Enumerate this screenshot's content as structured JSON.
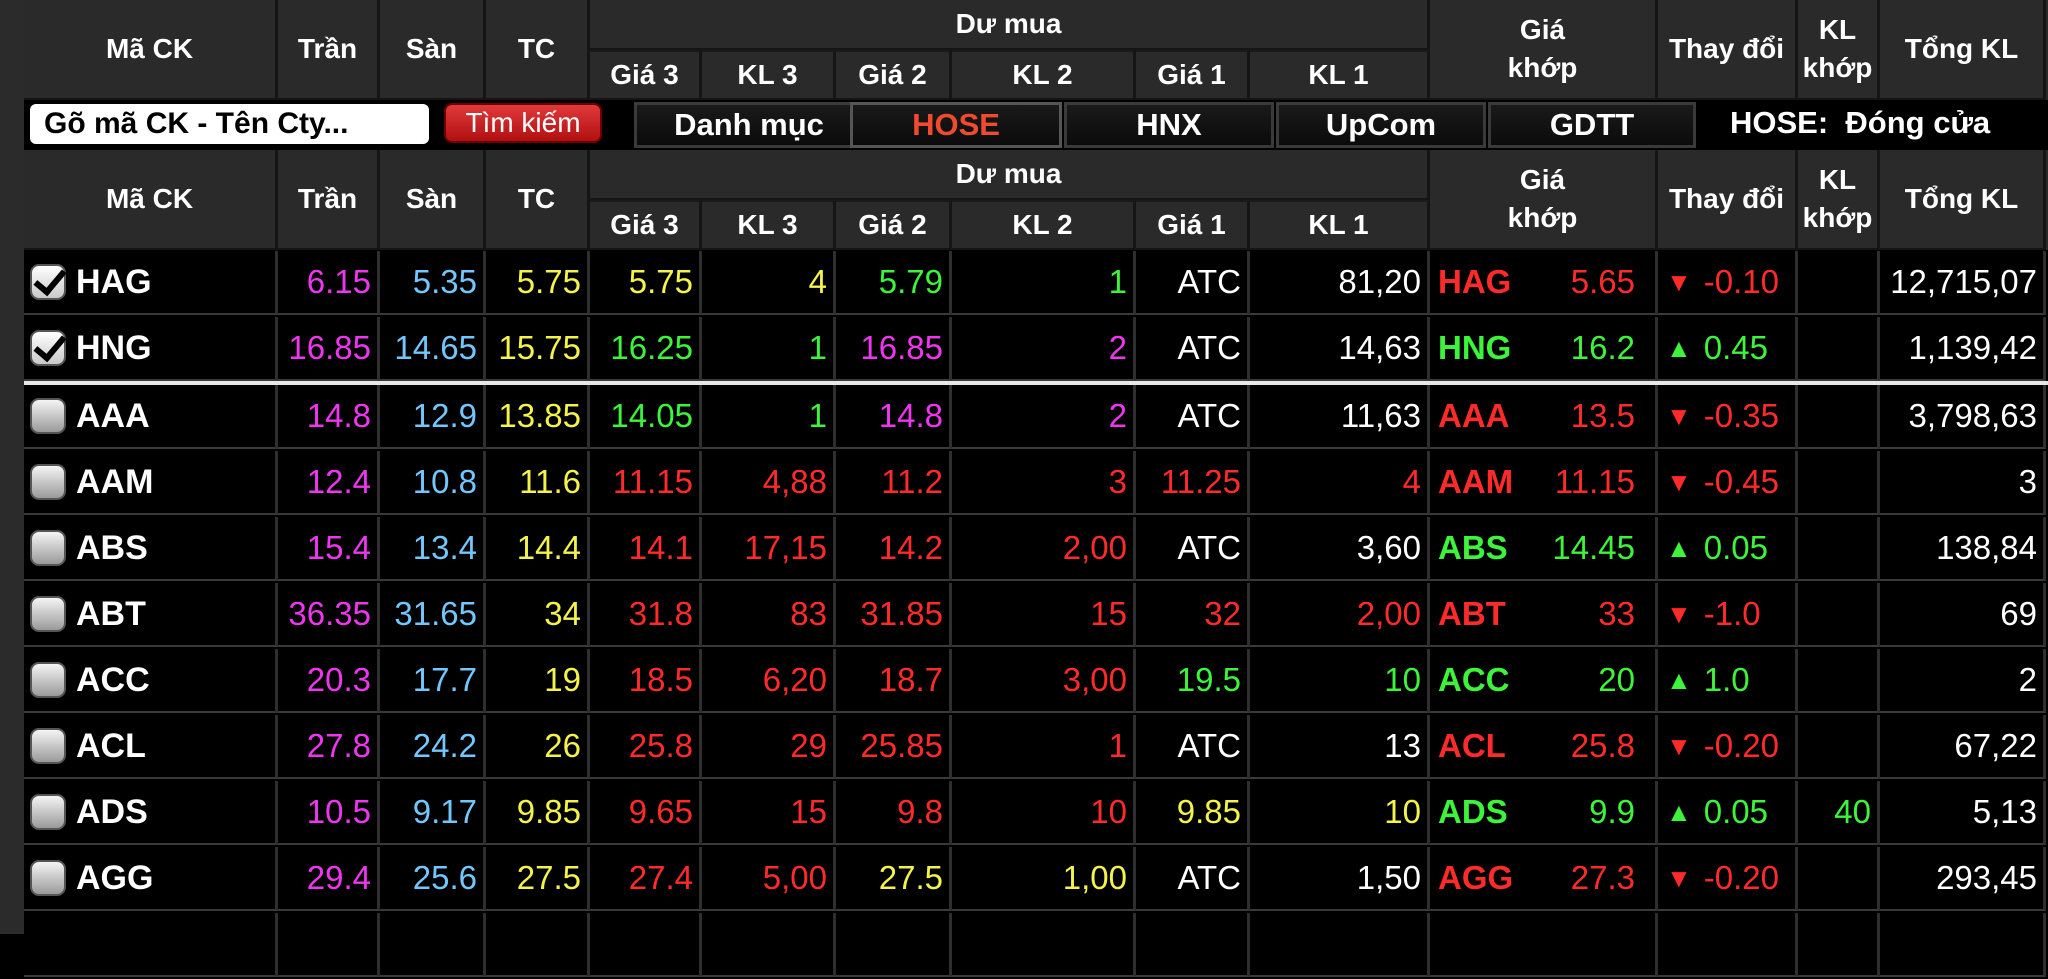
{
  "header": {
    "ma_ck": "Mã CK",
    "tran": "Trần",
    "san": "Sàn",
    "tc": "TC",
    "du_mua": "Dư mua",
    "gia3": "Giá 3",
    "kl3": "KL 3",
    "gia2": "Giá 2",
    "kl2": "KL 2",
    "gia1": "Giá 1",
    "kl1": "KL 1",
    "gia_khop_1": "Giá",
    "gia_khop_2": "khớp",
    "thay_doi": "Thay đổi",
    "kl_khop_1": "KL",
    "kl_khop_2": "khớp",
    "tong_kl": "Tổng KL"
  },
  "toolbar": {
    "search_placeholder": "Gõ mã CK - Tên Cty...",
    "search_button": "Tìm kiếm",
    "tabs": [
      "Danh mục",
      "HOSE",
      "HNX",
      "UpCom",
      "GDTT"
    ],
    "active_tab": "HOSE",
    "status": "HOSE:  Đóng cửa"
  },
  "colors": {
    "up": "#3cf53a",
    "down": "#ff2a2a",
    "ceiling": "#ef36ef",
    "floor": "#73c7ff",
    "reference": "#f3f34c",
    "neutral": "#ffffff",
    "active_tab": "#f04a2f"
  },
  "rows": [
    {
      "sym": "HAG",
      "checked": true,
      "tran": "6.15",
      "san": "5.35",
      "tc": "5.75",
      "g3": "5.75",
      "g3c": "yellow",
      "k3": "4",
      "k3c": "yellow",
      "g2": "5.79",
      "g2c": "green",
      "k2": "1",
      "k2c": "green",
      "g1": "ATC",
      "g1c": "white",
      "k1": "81,20",
      "k1c": "white",
      "msym": "HAG",
      "mprice": "5.65",
      "mc": "red",
      "dir": "down",
      "chg": "-0.10",
      "klk": "",
      "tong": "12,715,07"
    },
    {
      "sym": "HNG",
      "checked": true,
      "tran": "16.85",
      "san": "14.65",
      "tc": "15.75",
      "g3": "16.25",
      "g3c": "green",
      "k3": "1",
      "k3c": "green",
      "g2": "16.85",
      "g2c": "magenta",
      "k2": "2",
      "k2c": "magenta",
      "g1": "ATC",
      "g1c": "white",
      "k1": "14,63",
      "k1c": "white",
      "msym": "HNG",
      "mprice": "16.2",
      "mc": "green",
      "dir": "up",
      "chg": "0.45",
      "klk": "",
      "tong": "1,139,42"
    },
    {
      "sym": "AAA",
      "checked": false,
      "tran": "14.8",
      "san": "12.9",
      "tc": "13.85",
      "g3": "14.05",
      "g3c": "green",
      "k3": "1",
      "k3c": "green",
      "g2": "14.8",
      "g2c": "magenta",
      "k2": "2",
      "k2c": "magenta",
      "g1": "ATC",
      "g1c": "white",
      "k1": "11,63",
      "k1c": "white",
      "msym": "AAA",
      "mprice": "13.5",
      "mc": "red",
      "dir": "down",
      "chg": "-0.35",
      "klk": "",
      "tong": "3,798,63"
    },
    {
      "sym": "AAM",
      "checked": false,
      "tran": "12.4",
      "san": "10.8",
      "tc": "11.6",
      "g3": "11.15",
      "g3c": "red",
      "k3": "4,88",
      "k3c": "red",
      "g2": "11.2",
      "g2c": "red",
      "k2": "3",
      "k2c": "red",
      "g1": "11.25",
      "g1c": "red",
      "k1": "4",
      "k1c": "red",
      "msym": "AAM",
      "mprice": "11.15",
      "mc": "red",
      "dir": "down",
      "chg": "-0.45",
      "klk": "",
      "tong": "3"
    },
    {
      "sym": "ABS",
      "checked": false,
      "tran": "15.4",
      "san": "13.4",
      "tc": "14.4",
      "g3": "14.1",
      "g3c": "red",
      "k3": "17,15",
      "k3c": "red",
      "g2": "14.2",
      "g2c": "red",
      "k2": "2,00",
      "k2c": "red",
      "g1": "ATC",
      "g1c": "white",
      "k1": "3,60",
      "k1c": "white",
      "msym": "ABS",
      "mprice": "14.45",
      "mc": "green",
      "dir": "up",
      "chg": "0.05",
      "klk": "",
      "tong": "138,84"
    },
    {
      "sym": "ABT",
      "checked": false,
      "tran": "36.35",
      "san": "31.65",
      "tc": "34",
      "g3": "31.8",
      "g3c": "red",
      "k3": "83",
      "k3c": "red",
      "g2": "31.85",
      "g2c": "red",
      "k2": "15",
      "k2c": "red",
      "g1": "32",
      "g1c": "red",
      "k1": "2,00",
      "k1c": "red",
      "msym": "ABT",
      "mprice": "33",
      "mc": "red",
      "dir": "down",
      "chg": "-1.0",
      "klk": "",
      "tong": "69"
    },
    {
      "sym": "ACC",
      "checked": false,
      "tran": "20.3",
      "san": "17.7",
      "tc": "19",
      "g3": "18.5",
      "g3c": "red",
      "k3": "6,20",
      "k3c": "red",
      "g2": "18.7",
      "g2c": "red",
      "k2": "3,00",
      "k2c": "red",
      "g1": "19.5",
      "g1c": "green",
      "k1": "10",
      "k1c": "green",
      "msym": "ACC",
      "mprice": "20",
      "mc": "green",
      "dir": "up",
      "chg": "1.0",
      "klk": "",
      "tong": "2"
    },
    {
      "sym": "ACL",
      "checked": false,
      "tran": "27.8",
      "san": "24.2",
      "tc": "26",
      "g3": "25.8",
      "g3c": "red",
      "k3": "29",
      "k3c": "red",
      "g2": "25.85",
      "g2c": "red",
      "k2": "1",
      "k2c": "red",
      "g1": "ATC",
      "g1c": "white",
      "k1": "13",
      "k1c": "white",
      "msym": "ACL",
      "mprice": "25.8",
      "mc": "red",
      "dir": "down",
      "chg": "-0.20",
      "klk": "",
      "tong": "67,22"
    },
    {
      "sym": "ADS",
      "checked": false,
      "tran": "10.5",
      "san": "9.17",
      "tc": "9.85",
      "g3": "9.65",
      "g3c": "red",
      "k3": "15",
      "k3c": "red",
      "g2": "9.8",
      "g2c": "red",
      "k2": "10",
      "k2c": "red",
      "g1": "9.85",
      "g1c": "yellow",
      "k1": "10",
      "k1c": "yellow",
      "msym": "ADS",
      "mprice": "9.9",
      "mc": "green",
      "dir": "up",
      "chg": "0.05",
      "klk": "40",
      "tong": "5,13"
    },
    {
      "sym": "AGG",
      "checked": false,
      "tran": "29.4",
      "san": "25.6",
      "tc": "27.5",
      "g3": "27.4",
      "g3c": "red",
      "k3": "5,00",
      "k3c": "red",
      "g2": "27.5",
      "g2c": "yellow",
      "k2": "1,00",
      "k2c": "yellow",
      "g1": "ATC",
      "g1c": "white",
      "k1": "1,50",
      "k1c": "white",
      "msym": "AGG",
      "mprice": "27.3",
      "mc": "red",
      "dir": "down",
      "chg": "-0.20",
      "klk": "",
      "tong": "293,45"
    }
  ]
}
